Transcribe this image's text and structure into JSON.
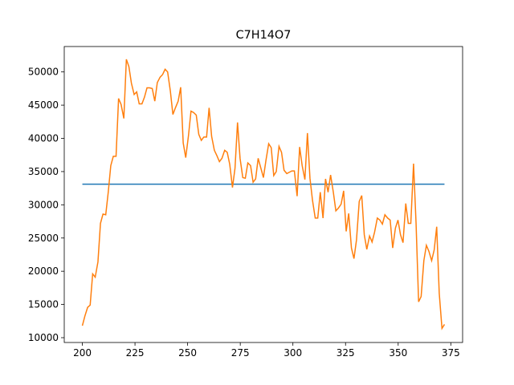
{
  "chart_data": {
    "type": "line",
    "title": "C7H14O7",
    "xlim": [
      191.4,
      380.6
    ],
    "xticks": [
      200,
      225,
      250,
      275,
      300,
      325,
      350,
      375
    ],
    "ylim": [
      9275,
      53825
    ],
    "yticks": [
      10000,
      15000,
      20000,
      25000,
      30000,
      35000,
      40000,
      45000,
      50000
    ],
    "series": [
      {
        "color": "#1f77b4",
        "x": [
          200,
          372
        ],
        "values": [
          33100,
          33100
        ]
      },
      {
        "color": "#ff7f0e",
        "x": [
          200,
          201.2,
          202.5,
          203.7,
          204.9,
          206.1,
          207.4,
          208.6,
          209.8,
          211.1,
          212.3,
          213.5,
          214.7,
          216.0,
          217.2,
          218.4,
          219.7,
          220.9,
          222.1,
          223.3,
          224.6,
          225.8,
          227.0,
          228.3,
          229.5,
          230.7,
          231.9,
          233.2,
          234.4,
          235.6,
          236.9,
          238.1,
          239.3,
          240.5,
          241.8,
          243.0,
          244.2,
          245.5,
          246.7,
          247.9,
          249.1,
          250.4,
          251.6,
          252.8,
          254.1,
          255.3,
          256.5,
          257.7,
          259.0,
          260.2,
          261.4,
          262.7,
          263.9,
          265.1,
          266.3,
          267.6,
          268.8,
          270.0,
          271.3,
          272.5,
          273.7,
          274.9,
          276.2,
          277.4,
          278.6,
          279.9,
          281.1,
          282.3,
          283.5,
          284.8,
          286.0,
          287.2,
          288.5,
          289.7,
          290.9,
          292.1,
          293.4,
          294.6,
          295.8,
          297.1,
          298.3,
          299.5,
          300.7,
          302.0,
          303.2,
          304.4,
          305.7,
          306.9,
          308.1,
          309.3,
          310.6,
          311.8,
          313.0,
          314.3,
          315.5,
          316.7,
          317.9,
          319.2,
          320.4,
          321.6,
          322.9,
          324.1,
          325.3,
          326.5,
          327.8,
          329.0,
          330.2,
          331.5,
          332.7,
          333.9,
          335.1,
          336.4,
          337.6,
          338.8,
          340.1,
          341.3,
          342.5,
          343.7,
          345.0,
          346.2,
          347.4,
          348.7,
          349.9,
          351.1,
          352.3,
          353.6,
          354.8,
          356.0,
          357.3,
          358.5,
          359.7,
          360.9,
          362.2,
          363.4,
          364.6,
          365.9,
          367.1,
          368.3,
          369.5,
          370.8,
          372
        ],
        "values": [
          11800,
          13250,
          14560,
          14900,
          19600,
          19100,
          21400,
          27200,
          28600,
          28500,
          31900,
          35900,
          37300,
          37300,
          46000,
          45100,
          43000,
          51900,
          50800,
          48300,
          46600,
          47000,
          45200,
          45200,
          46200,
          47600,
          47600,
          47500,
          45600,
          48400,
          49200,
          49600,
          50400,
          50000,
          47100,
          43600,
          44600,
          45600,
          47700,
          39300,
          37100,
          40400,
          44100,
          43900,
          43500,
          40600,
          39700,
          40200,
          40200,
          44600,
          40300,
          38200,
          37400,
          36500,
          37000,
          38200,
          37900,
          36100,
          32600,
          35500,
          42400,
          37000,
          34100,
          34000,
          36300,
          35900,
          33400,
          33900,
          37000,
          35500,
          34100,
          36700,
          39200,
          38600,
          34400,
          35000,
          38800,
          37900,
          35200,
          34700,
          34900,
          35100,
          35100,
          31300,
          38700,
          35900,
          33800,
          40800,
          34000,
          30700,
          28000,
          28000,
          31900,
          28000,
          33900,
          31900,
          34500,
          31900,
          29100,
          29500,
          30100,
          32100,
          26000,
          28700,
          23500,
          21900,
          24700,
          30500,
          31400,
          25500,
          23300,
          25300,
          24400,
          25900,
          28000,
          27700,
          27100,
          28500,
          28000,
          27700,
          23500,
          26500,
          27700,
          25500,
          24300,
          30200,
          27200,
          27200,
          36200,
          27200,
          15400,
          16200,
          21600,
          23900,
          23000,
          21600,
          23200,
          26700,
          16700,
          11400,
          12000
        ]
      }
    ]
  }
}
